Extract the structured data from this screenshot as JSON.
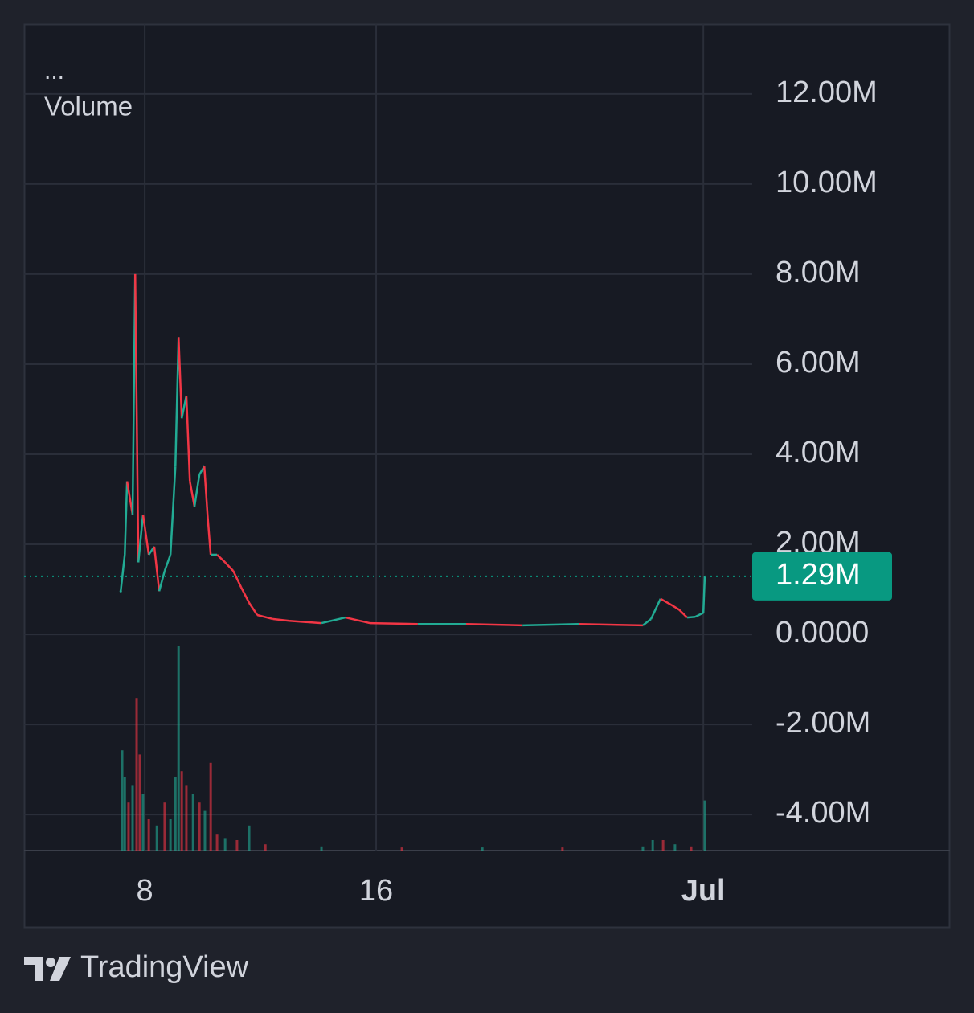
{
  "chart_data": {
    "type": "line",
    "legend_header": "...",
    "title": "Volume",
    "brand": "TradingView",
    "x": [
      7.17,
      7.31,
      7.39,
      7.58,
      7.67,
      7.78,
      7.94,
      8.14,
      8.33,
      8.5,
      8.69,
      8.89,
      9.06,
      9.17,
      9.28,
      9.44,
      9.56,
      9.72,
      9.89,
      10.06,
      10.17,
      10.28,
      10.5,
      10.78,
      11.06,
      11.33,
      11.61,
      11.89,
      12.44,
      13,
      14.11,
      14.94,
      15.78,
      17.44,
      19.11,
      21.06,
      23,
      25.22,
      25.5,
      25.83,
      26.19,
      26.47,
      26.75,
      27.03,
      27.31,
      27.36
    ],
    "series": [
      {
        "name": "Volume",
        "up_color": "#22ab94",
        "down_color": "#f23645",
        "values": [
          960000,
          1770000,
          3400000,
          2660000,
          8000000,
          1600000,
          2660000,
          1770000,
          1950000,
          960000,
          1410000,
          1770000,
          3730000,
          6600000,
          4800000,
          5300000,
          3400000,
          2840000,
          3550000,
          3730000,
          2660000,
          1770000,
          1770000,
          1600000,
          1410000,
          1050000,
          700000,
          430000,
          340000,
          300000,
          250000,
          375000,
          250000,
          230000,
          230000,
          200000,
          230000,
          200000,
          340000,
          790000,
          660000,
          550000,
          375000,
          390000,
          480000,
          1290000
        ]
      }
    ],
    "volume": {
      "axis": "y2",
      "x": [
        7.22,
        7.31,
        7.44,
        7.58,
        7.72,
        7.83,
        7.94,
        8.14,
        8.42,
        8.69,
        8.89,
        9.06,
        9.17,
        9.28,
        9.44,
        9.67,
        9.89,
        10.08,
        10.28,
        10.5,
        10.78,
        11.19,
        11.61,
        12.17,
        14.11,
        16.89,
        19.67,
        22.44,
        25.22,
        25.56,
        25.92,
        26.33,
        26.89,
        27.36
      ],
      "values": [
        48,
        35,
        23,
        31,
        73,
        46,
        27,
        15,
        12,
        23,
        15,
        35,
        98,
        38,
        31,
        27,
        23,
        19,
        42,
        8,
        6,
        5,
        12,
        3,
        2,
        1.5,
        1.5,
        1.5,
        2,
        5,
        5,
        3,
        2,
        24
      ],
      "up": [
        true,
        true,
        false,
        true,
        false,
        false,
        true,
        false,
        true,
        false,
        true,
        true,
        true,
        false,
        false,
        true,
        false,
        true,
        false,
        false,
        true,
        false,
        true,
        false,
        true,
        false,
        true,
        false,
        true,
        true,
        false,
        true,
        false,
        true
      ]
    },
    "y2lim": [
      0,
      100
    ],
    "last_value": 1290000,
    "last_value_label": "1.29M",
    "last_color": "#089981",
    "xlim": [
      3.83,
      29
    ],
    "xticks": [
      8,
      16,
      {
        "value": 27.31,
        "label": "Jul"
      }
    ],
    "ylim": [
      -4800000,
      13550000
    ],
    "yticks": [
      {
        "value": 12000000,
        "label": "12.00M"
      },
      {
        "value": 10000000,
        "label": "10.00M"
      },
      {
        "value": 8000000,
        "label": "8.00M"
      },
      {
        "value": 6000000,
        "label": "6.00M"
      },
      {
        "value": 4000000,
        "label": "4.00M"
      },
      {
        "value": 2000000,
        "label": "2.00M"
      },
      {
        "value": 0,
        "label": "0.0000"
      },
      {
        "value": -2000000,
        "label": "-2.00M"
      },
      {
        "value": -4000000,
        "label": "-4.00M"
      }
    ],
    "grid": true
  }
}
